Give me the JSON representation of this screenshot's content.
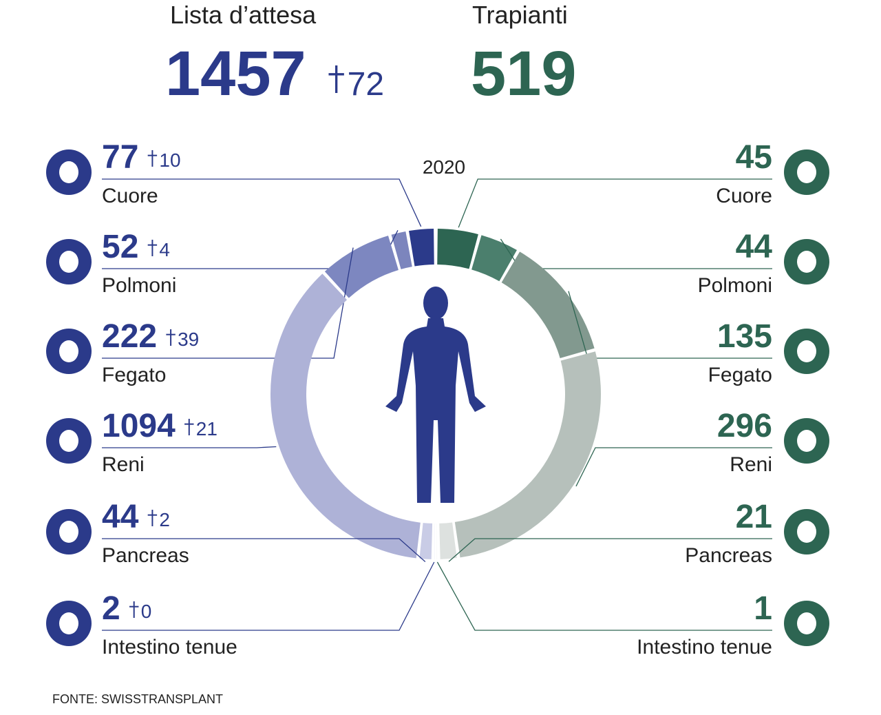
{
  "chart_data": {
    "type": "split-donut",
    "title": "2020",
    "source": "FONTE: SWISSTRANSPLANT",
    "categories": [
      "Cuore",
      "Polmoni",
      "Fegato",
      "Reni",
      "Pancreas",
      "Intestino tenue"
    ],
    "series": [
      {
        "name": "Lista d’attesa",
        "total": 1457,
        "deaths_total": 72,
        "color": "#2b3a8a",
        "values": [
          77,
          52,
          222,
          1094,
          44,
          2
        ],
        "deaths": [
          10,
          4,
          39,
          21,
          2,
          0
        ],
        "colors": [
          "#2b3a8a",
          "#7c85bd",
          "#7d87c0",
          "#aeb2d7",
          "#c9cce6",
          "#dcdef0"
        ]
      },
      {
        "name": "Trapianti",
        "total": 519,
        "color": "#2d6552",
        "values": [
          45,
          44,
          135,
          296,
          21,
          1
        ],
        "colors": [
          "#2d6552",
          "#4b7f6d",
          "#82998f",
          "#b6c0bb",
          "#dde1df",
          "#e8ebea"
        ]
      }
    ]
  }
}
